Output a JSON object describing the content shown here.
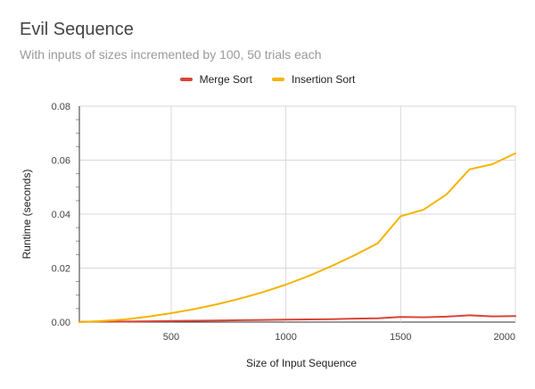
{
  "chart_data": {
    "type": "line",
    "title": "Evil Sequence",
    "subtitle": "With inputs of sizes incremented by 100, 50 trials each",
    "xlabel": "Size of Input Sequence",
    "ylabel": "Runtime (seconds)",
    "xlim": [
      100,
      2000
    ],
    "ylim": [
      0,
      0.08
    ],
    "x_ticks": [
      500,
      1000,
      1500,
      2000
    ],
    "y_ticks": [
      0.0,
      0.02,
      0.04,
      0.06,
      0.08
    ],
    "y_tick_labels": [
      "0.00",
      "0.02",
      "0.04",
      "0.06",
      "0.08"
    ],
    "grid": true,
    "legend_position": "top",
    "x": [
      100,
      200,
      300,
      400,
      500,
      600,
      700,
      800,
      900,
      1000,
      1100,
      1200,
      1300,
      1400,
      1500,
      1600,
      1700,
      1800,
      1900,
      2000
    ],
    "series": [
      {
        "name": "Merge Sort",
        "color": "#db4437",
        "values": [
          0.0001,
          0.0002,
          0.0002,
          0.0003,
          0.0004,
          0.0005,
          0.0006,
          0.0007,
          0.0008,
          0.0009,
          0.001,
          0.0011,
          0.0013,
          0.0014,
          0.0019,
          0.0018,
          0.002,
          0.0025,
          0.0021,
          0.0022
        ]
      },
      {
        "name": "Insertion Sort",
        "color": "#f4b400",
        "values": [
          0.0,
          0.0004,
          0.001,
          0.002,
          0.0033,
          0.0048,
          0.0066,
          0.0087,
          0.0111,
          0.0139,
          0.0171,
          0.0208,
          0.0248,
          0.0292,
          0.0392,
          0.0417,
          0.0473,
          0.0566,
          0.0585,
          0.0625
        ]
      }
    ]
  }
}
